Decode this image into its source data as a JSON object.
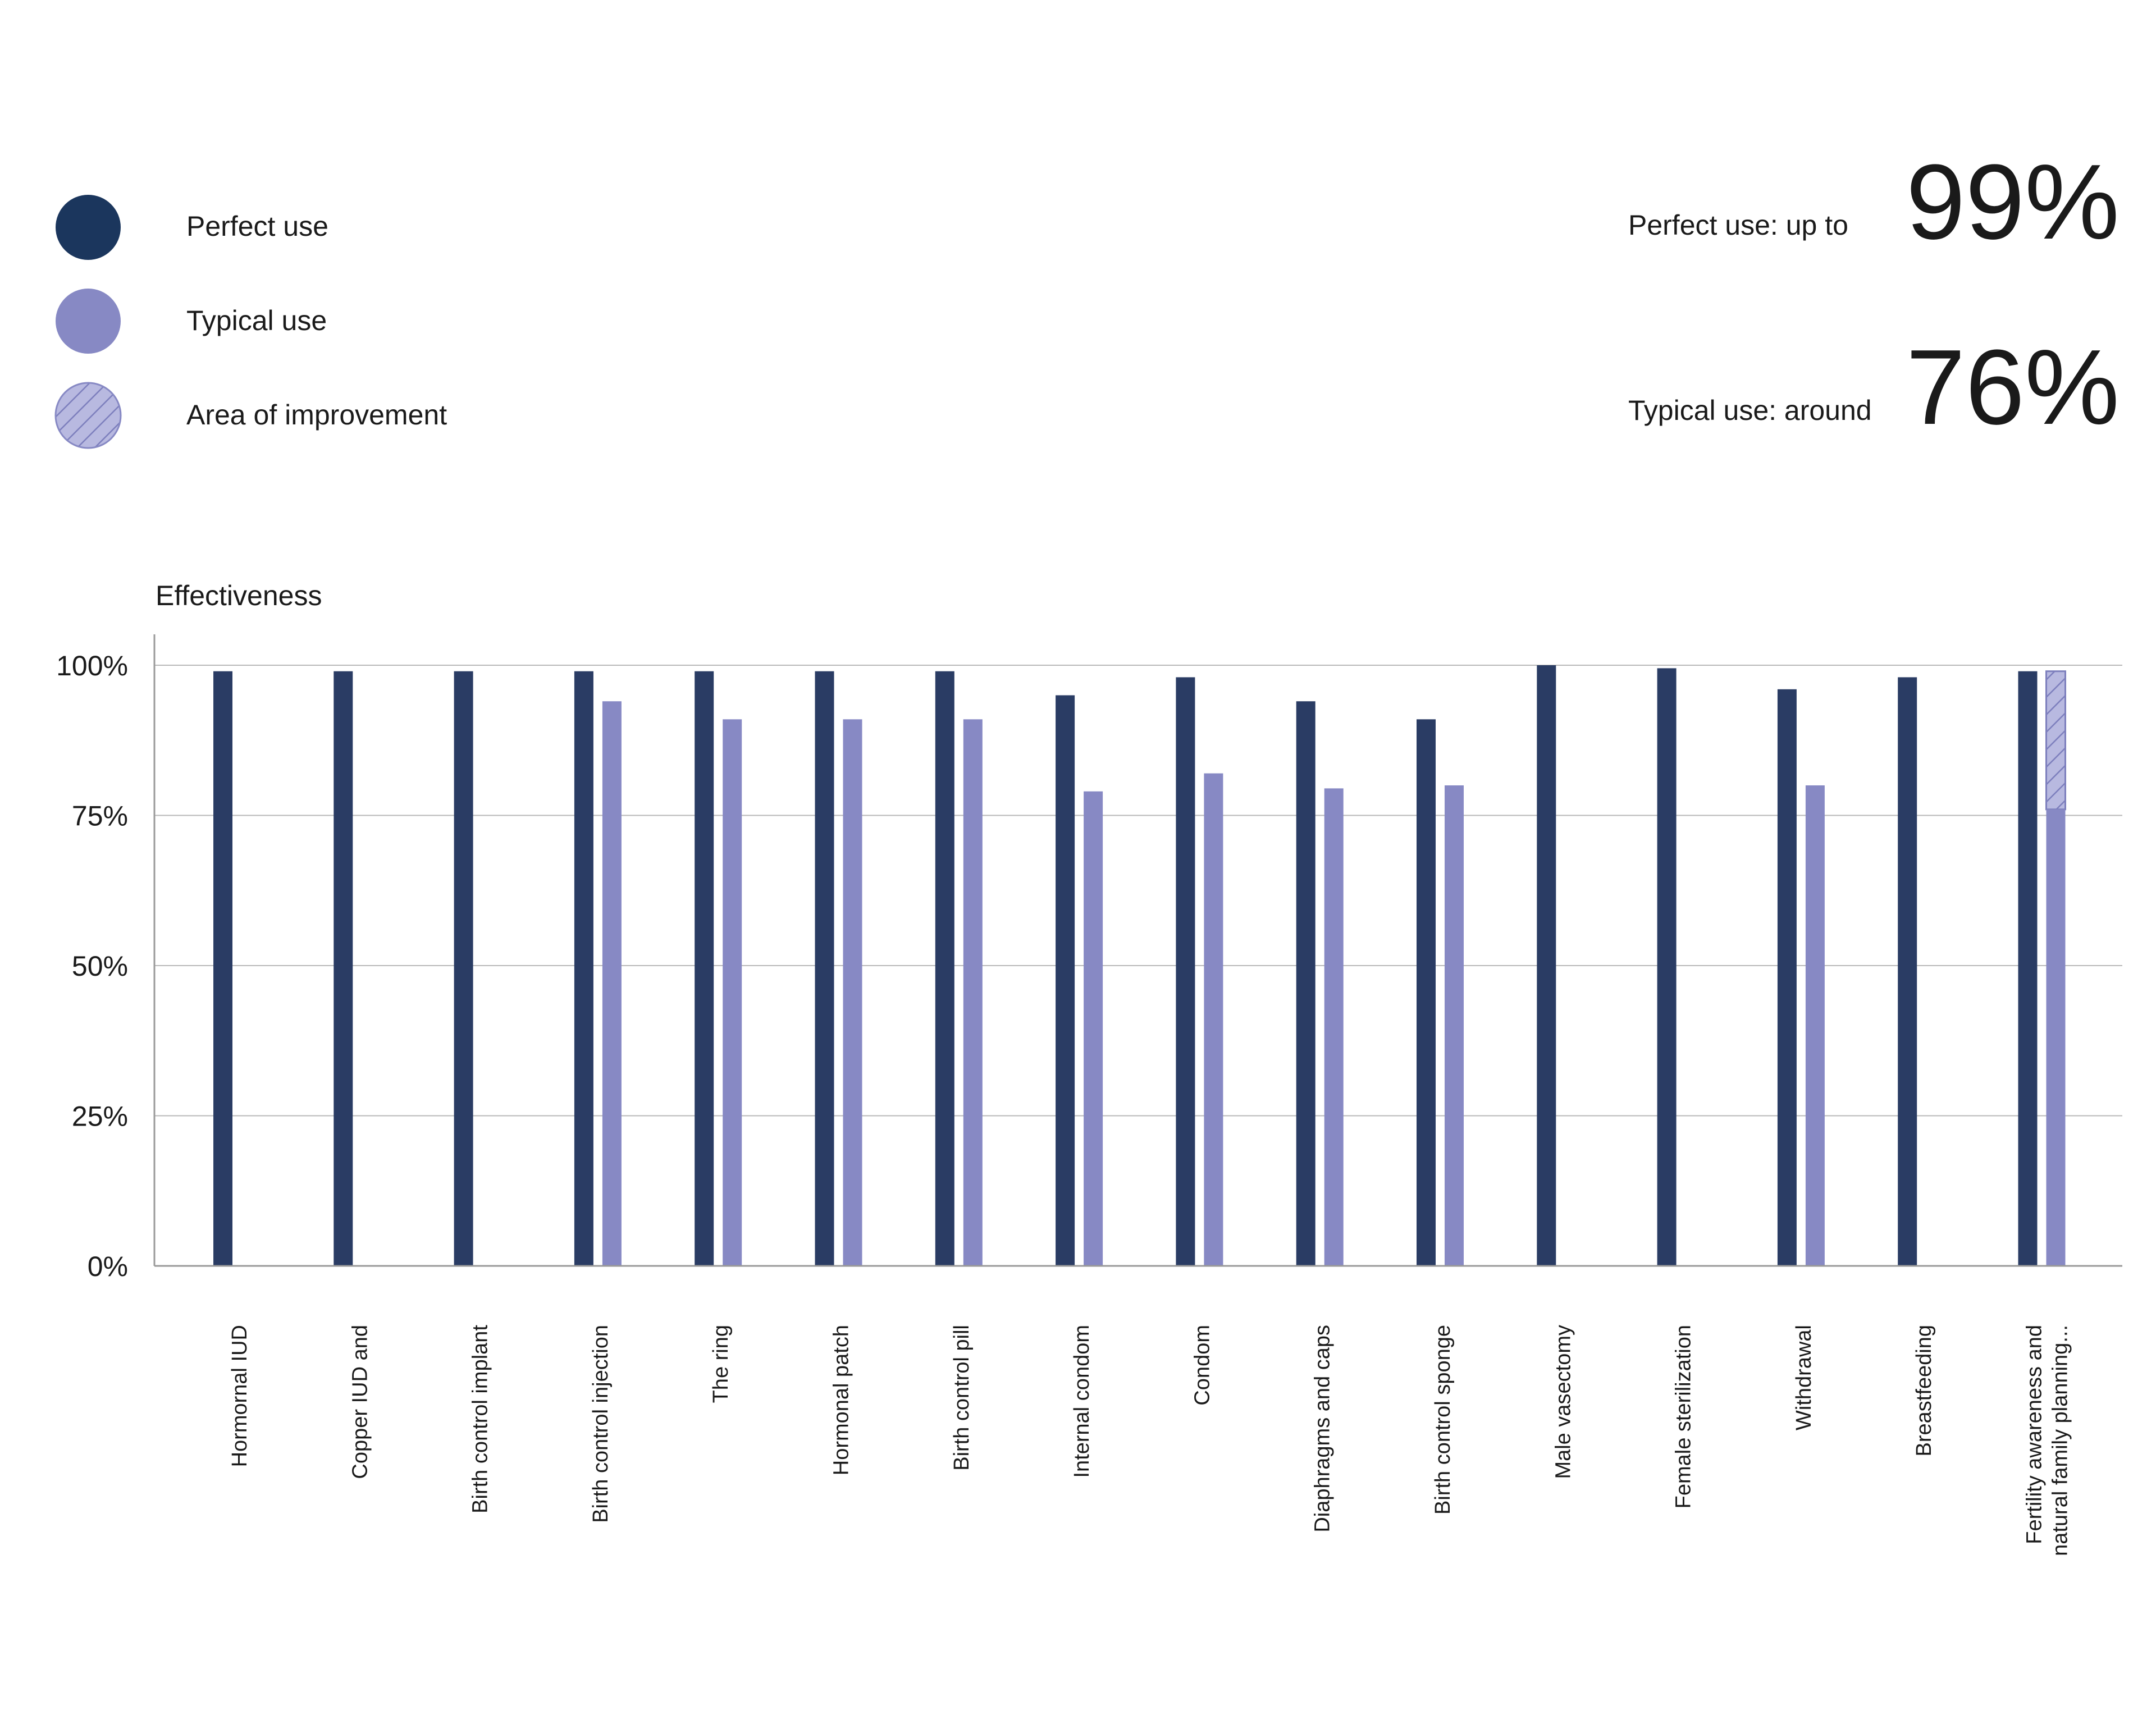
{
  "legend": {
    "items": [
      {
        "label": "Perfect use",
        "color": "#1b365d",
        "kind": "solid"
      },
      {
        "label": "Typical use",
        "color": "#8789c4",
        "kind": "solid"
      },
      {
        "label": "Area of improvement",
        "color": "#b8b9e0",
        "kind": "hatched"
      }
    ]
  },
  "stats": {
    "perfect_label": "Perfect use: up to",
    "perfect_value": "99%",
    "typical_label": "Typical use: around",
    "typical_value": "76%"
  },
  "chart_data": {
    "type": "bar",
    "ylabel": "Effectiveness",
    "ylim": [
      0,
      100
    ],
    "yticks": [
      "0%",
      "25%",
      "50%",
      "75%",
      "100%"
    ],
    "ytick_values": [
      0,
      25,
      50,
      75,
      100
    ],
    "grid": true,
    "legend_position": "top-left",
    "categories": [
      [
        "Hormornal IUD"
      ],
      [
        "Copper IUD and"
      ],
      [
        "Birth control implant"
      ],
      [
        "Birth control injection"
      ],
      [
        "The ring"
      ],
      [
        "Hormonal patch"
      ],
      [
        "Birth control pill"
      ],
      [
        "Internal condom"
      ],
      [
        "Condom"
      ],
      [
        "Diaphragms and caps"
      ],
      [
        "Birth control sponge"
      ],
      [
        "Male vasectomy"
      ],
      [
        "Female sterilization"
      ],
      [
        "Withdrawal"
      ],
      [
        "Breastfeeding"
      ],
      [
        "Fertility awareness and",
        "natural family planning..."
      ]
    ],
    "series": [
      {
        "name": "Perfect use",
        "color": "#2a3c64",
        "values": [
          99,
          99,
          99,
          99,
          99,
          99,
          99,
          95,
          98,
          94,
          91,
          100,
          99.5,
          96,
          98,
          99
        ]
      },
      {
        "name": "Typical use",
        "color": "#8789c4",
        "values": [
          null,
          null,
          null,
          94,
          91,
          91,
          91,
          79,
          82,
          79.5,
          80,
          null,
          null,
          80,
          null,
          76
        ]
      },
      {
        "name": "Area of improvement",
        "color": "#b8b9e0",
        "values": [
          null,
          null,
          null,
          null,
          null,
          null,
          null,
          null,
          null,
          null,
          null,
          null,
          null,
          null,
          null,
          99
        ]
      }
    ]
  }
}
